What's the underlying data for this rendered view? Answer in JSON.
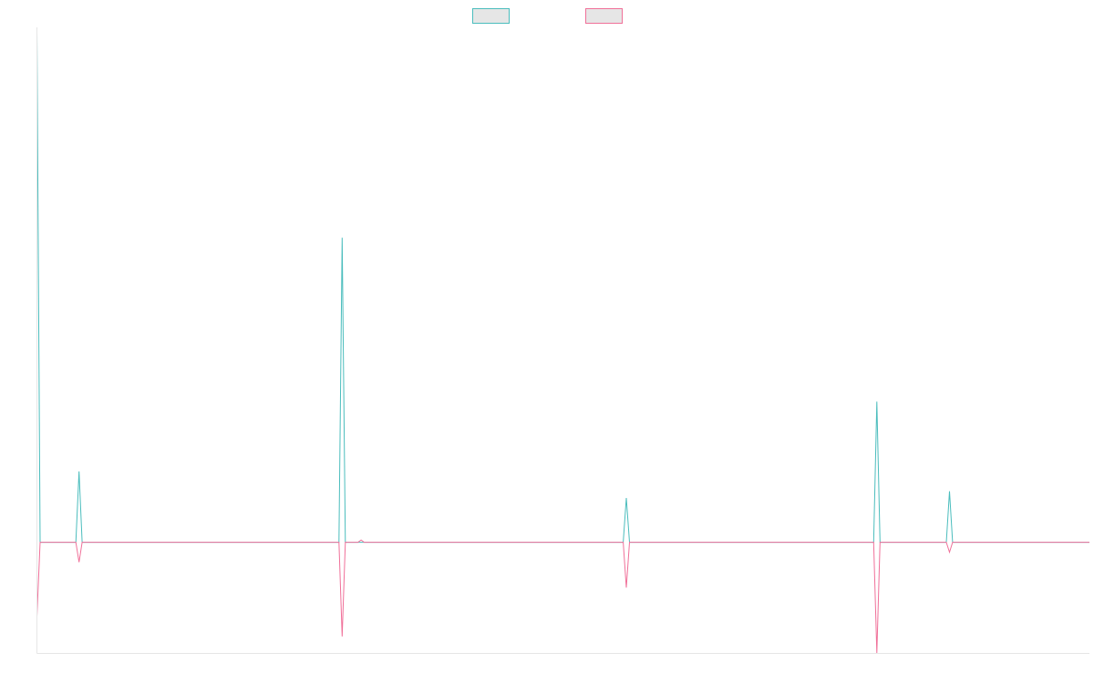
{
  "chart_data": {
    "type": "line",
    "title": "",
    "xlabel": "",
    "ylabel": "",
    "legend_position": "top-center",
    "grid": false,
    "x_range": [
      0,
      1000
    ],
    "y_range": [
      -100,
      460
    ],
    "series": [
      {
        "color": "#4bbdbd",
        "points": [
          [
            0,
            460
          ],
          [
            3,
            0
          ],
          [
            37,
            0
          ],
          [
            40,
            64
          ],
          [
            43,
            0
          ],
          [
            287,
            0
          ],
          [
            290,
            275
          ],
          [
            293,
            0
          ],
          [
            557,
            0
          ],
          [
            560,
            40
          ],
          [
            563,
            0
          ],
          [
            795,
            0
          ],
          [
            798,
            127
          ],
          [
            801,
            0
          ],
          [
            864,
            0
          ],
          [
            867,
            46
          ],
          [
            870,
            0
          ],
          [
            1000,
            0
          ]
        ]
      },
      {
        "color": "#f07099",
        "points": [
          [
            0,
            -67
          ],
          [
            3,
            0
          ],
          [
            37,
            0
          ],
          [
            40,
            -18
          ],
          [
            43,
            0
          ],
          [
            287,
            0
          ],
          [
            290,
            -85
          ],
          [
            293,
            0
          ],
          [
            305,
            0
          ],
          [
            308,
            2
          ],
          [
            311,
            0
          ],
          [
            557,
            0
          ],
          [
            560,
            -41
          ],
          [
            563,
            0
          ],
          [
            795,
            0
          ],
          [
            798,
            -100
          ],
          [
            801,
            0
          ],
          [
            864,
            0
          ],
          [
            867,
            -9
          ],
          [
            870,
            0
          ],
          [
            1000,
            0
          ]
        ]
      }
    ]
  }
}
